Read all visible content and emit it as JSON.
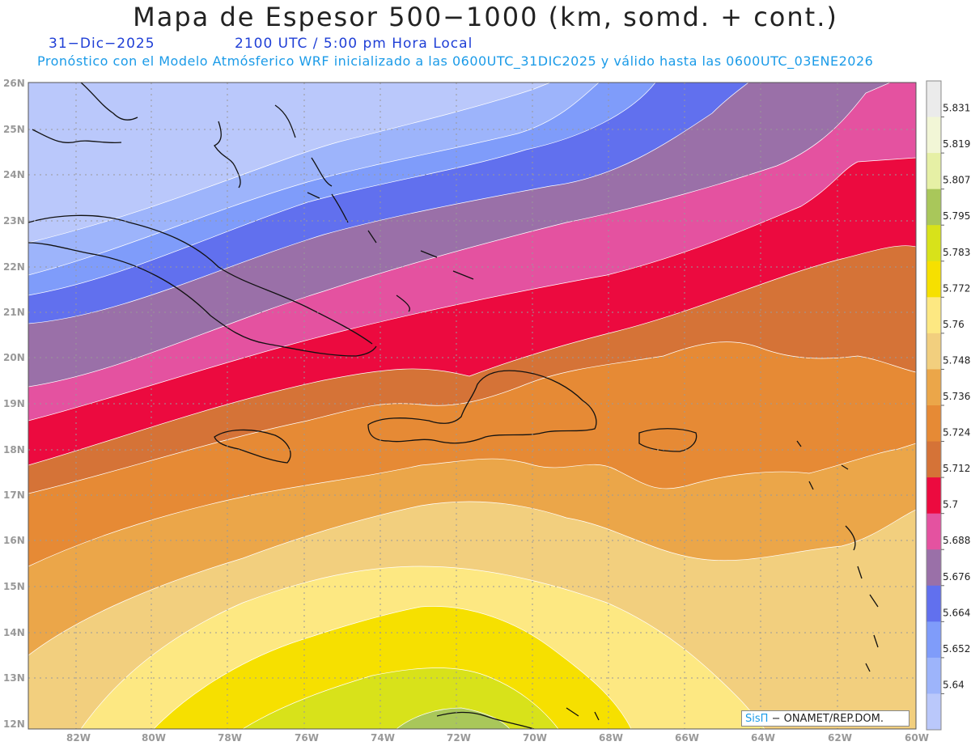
{
  "header": {
    "title": "Mapa de Espesor 500−1000 (km, somd. + cont.)",
    "date": "31−Dic−2025",
    "time": "2100 UTC / 5:00 pm Hora Local",
    "forecast": "Pronóstico con el Modelo Atmósferico WRF inicializado a las 0600UTC_31DIC2025 y válido hasta las  0600UTC_03ENE2026"
  },
  "axes": {
    "lat_labels": [
      "26N",
      "25N",
      "24N",
      "23N",
      "22N",
      "21N",
      "20N",
      "19N",
      "18N",
      "17N",
      "16N",
      "15N",
      "14N",
      "13N",
      "12N"
    ],
    "lon_labels": [
      "82W",
      "80W",
      "78W",
      "76W",
      "74W",
      "72W",
      "70W",
      "68W",
      "66W",
      "64W",
      "62W",
      "60W"
    ]
  },
  "colorbar": {
    "labels": [
      "5.831",
      "5.819",
      "5.807",
      "5.795",
      "5.783",
      "5.772",
      "5.76",
      "5.748",
      "5.736",
      "5.724",
      "5.712",
      "5.7",
      "5.688",
      "5.676",
      "5.664",
      "5.652",
      "5.64"
    ],
    "colors": [
      "#ebebeb",
      "#f2f6d6",
      "#e6f0a5",
      "#a9c75a",
      "#d8e21a",
      "#f6e000",
      "#fde882",
      "#f2cf7e",
      "#eba649",
      "#e68a35",
      "#d57337",
      "#ec0a3f",
      "#e452a0",
      "#9a70a8",
      "#6170ee",
      "#7f9cfa",
      "#9db4fb",
      "#bac8fb"
    ]
  },
  "credit": {
    "brand": "SisΠ",
    "text": "− ONAMET/REP.DOM."
  }
}
